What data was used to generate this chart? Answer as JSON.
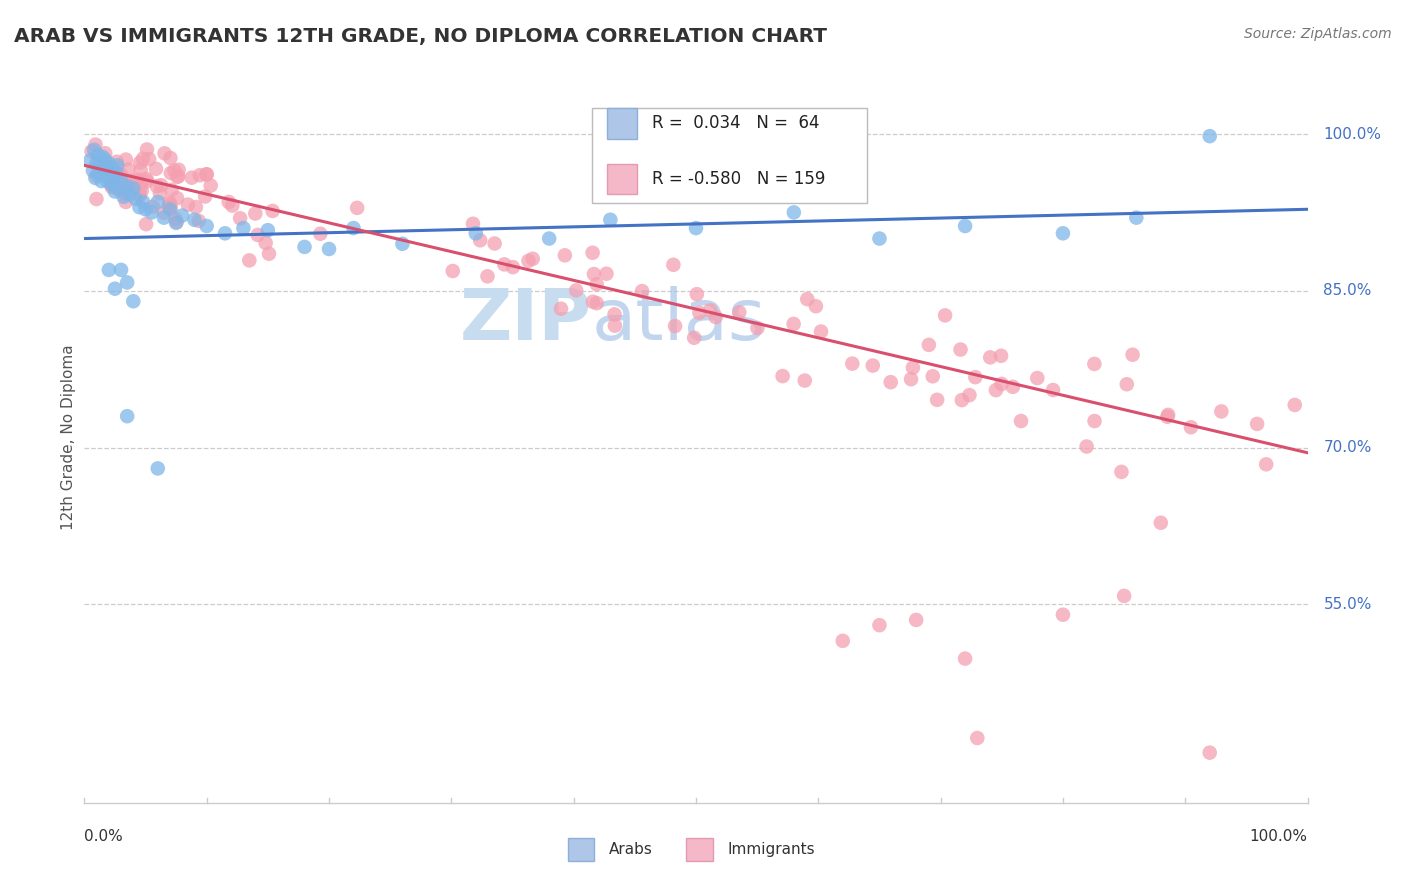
{
  "title": "ARAB VS IMMIGRANTS 12TH GRADE, NO DIPLOMA CORRELATION CHART",
  "source_text": "Source: ZipAtlas.com",
  "ylabel": "12th Grade, No Diploma",
  "ylabel_ticks": [
    "100.0%",
    "85.0%",
    "70.0%",
    "55.0%"
  ],
  "ylabel_tick_vals": [
    1.0,
    0.85,
    0.7,
    0.55
  ],
  "xlim": [
    0.0,
    1.0
  ],
  "ylim": [
    0.36,
    1.06
  ],
  "legend_arab_R": "0.034",
  "legend_arab_N": "64",
  "legend_imm_R": "-0.580",
  "legend_imm_N": "159",
  "arab_color": "#7EB6E8",
  "imm_color": "#F4A0B0",
  "arab_line_color": "#4472C4",
  "imm_line_color": "#D94F6E",
  "grid_color": "#CCCCCC",
  "arab_trend_x0": 0.0,
  "arab_trend_y0": 0.9,
  "arab_trend_x1": 1.0,
  "arab_trend_y1": 0.928,
  "imm_trend_x0": 0.0,
  "imm_trend_y0": 0.97,
  "imm_trend_x1": 1.0,
  "imm_trend_y1": 0.695
}
